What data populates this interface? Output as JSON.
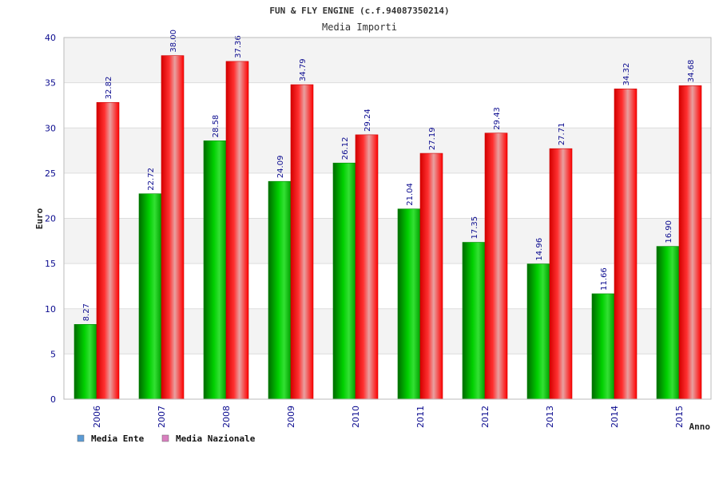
{
  "chart_data": {
    "type": "bar",
    "title": "FUN & FLY ENGINE (c.f.94087350214)",
    "subtitle": "Media Importi",
    "xlabel": "Anno",
    "ylabel": "Euro",
    "ylim": [
      0,
      40
    ],
    "yticks": [
      0,
      5,
      10,
      15,
      20,
      25,
      30,
      35,
      40
    ],
    "categories": [
      "2006",
      "2007",
      "2008",
      "2009",
      "2010",
      "2011",
      "2012",
      "2013",
      "2014",
      "2015"
    ],
    "series": [
      {
        "name": "Media Ente",
        "color": "#00b400",
        "legend_color": "#5b9bd5",
        "values": [
          8.27,
          22.72,
          28.58,
          24.09,
          26.12,
          21.04,
          17.35,
          14.96,
          11.66,
          16.9
        ],
        "labels": [
          "8.27",
          "22.72",
          "28.58",
          "24.09",
          "26.12",
          "21.04",
          "17.35",
          "14.96",
          "11.66",
          "16.90"
        ]
      },
      {
        "name": "Media Nazionale",
        "color": "#ff1a1a",
        "legend_color": "#d97fbf",
        "values": [
          32.82,
          38.0,
          37.36,
          34.79,
          29.24,
          27.19,
          29.43,
          27.71,
          34.32,
          34.68
        ],
        "labels": [
          "32.82",
          "38.00",
          "37.36",
          "34.79",
          "29.24",
          "27.19",
          "29.43",
          "27.71",
          "34.32",
          "34.68"
        ]
      }
    ],
    "grid": true,
    "legend_position": "bottom-left"
  }
}
